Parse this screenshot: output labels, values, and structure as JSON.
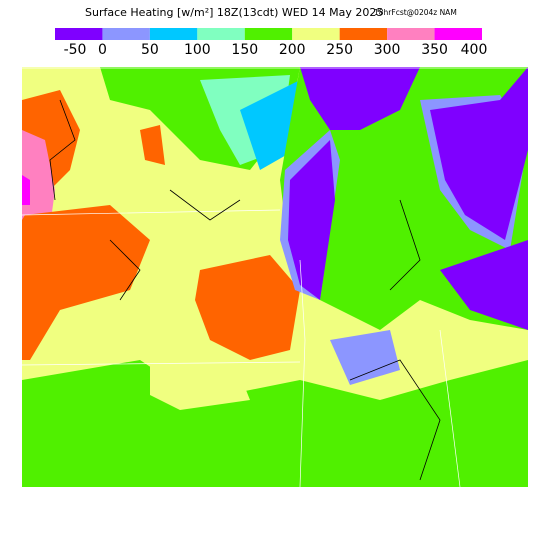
{
  "header": {
    "title": "Surface Heating [w/m²] 18Z(13cdt) WED 14 May 2025",
    "run": "18hrFcst@0204z NAM"
  },
  "colorbar": {
    "levels": [
      -50,
      0,
      50,
      100,
      150,
      200,
      250,
      300,
      350,
      400
    ],
    "colors": [
      "#7f00ff",
      "#8c96ff",
      "#00c8ff",
      "#80ffc0",
      "#50f000",
      "#f0ff80",
      "#ff6400",
      "#ff80c0",
      "#ff00ff"
    ]
  }
}
